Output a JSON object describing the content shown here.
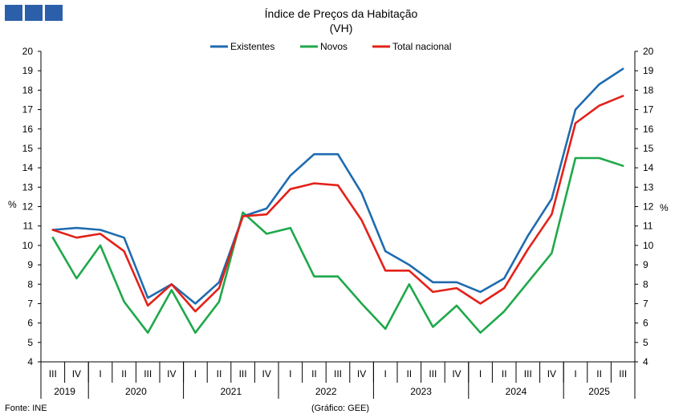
{
  "logo_color": "#2b5faa",
  "footer": {
    "source": "Fonte: INE",
    "credit": "(Gráfico: GEE)"
  },
  "chart_data": {
    "type": "line",
    "title": "Índice de Preços da Habitação",
    "subtitle": "(VH)",
    "ylabel_left": "%",
    "ylabel_right": "%",
    "ylim": [
      4,
      20
    ],
    "yticks": [
      4,
      5,
      6,
      7,
      8,
      9,
      10,
      11,
      12,
      13,
      14,
      15,
      16,
      17,
      18,
      19,
      20
    ],
    "grid": false,
    "legend": "top",
    "quarters": [
      "III",
      "IV",
      "I",
      "II",
      "III",
      "IV",
      "I",
      "II",
      "III",
      "IV",
      "I",
      "II",
      "III",
      "IV",
      "I",
      "II",
      "III",
      "IV",
      "I",
      "II",
      "III",
      "IV",
      "I",
      "II",
      "III"
    ],
    "years": [
      {
        "label": "2019",
        "quarters": 2
      },
      {
        "label": "2020",
        "quarters": 4
      },
      {
        "label": "2021",
        "quarters": 4
      },
      {
        "label": "2022",
        "quarters": 4
      },
      {
        "label": "2023",
        "quarters": 4
      },
      {
        "label": "2024",
        "quarters": 4
      },
      {
        "label": "2025",
        "quarters": 3
      }
    ],
    "series": [
      {
        "name": "Existentes",
        "color": "#1f6bb0",
        "values": [
          10.8,
          10.9,
          10.8,
          10.4,
          7.3,
          8.0,
          7.0,
          8.1,
          11.5,
          11.9,
          13.6,
          14.7,
          14.7,
          12.7,
          9.7,
          9.0,
          8.1,
          8.1,
          7.6,
          8.3,
          10.5,
          12.4,
          17.0,
          18.3,
          19.1
        ]
      },
      {
        "name": "Novos",
        "color": "#1fa84a",
        "values": [
          10.4,
          8.3,
          10.0,
          7.1,
          5.5,
          7.7,
          5.5,
          7.1,
          11.7,
          10.6,
          10.9,
          8.4,
          8.4,
          7.0,
          5.7,
          8.0,
          5.8,
          6.9,
          5.5,
          6.6,
          8.1,
          9.6,
          14.5,
          14.5,
          14.1
        ]
      },
      {
        "name": "Total nacional",
        "color": "#e32119",
        "values": [
          10.8,
          10.4,
          10.6,
          9.7,
          6.9,
          8.0,
          6.6,
          7.8,
          11.5,
          11.6,
          12.9,
          13.2,
          13.1,
          11.3,
          8.7,
          8.7,
          7.6,
          7.8,
          7.0,
          7.8,
          9.8,
          11.6,
          16.3,
          17.2,
          17.7
        ]
      }
    ]
  }
}
